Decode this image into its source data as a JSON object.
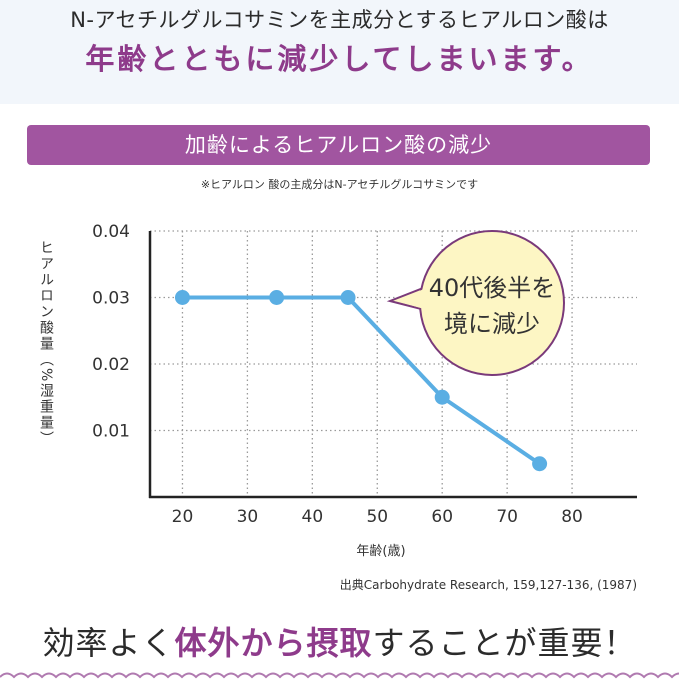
{
  "header": {
    "line1": "N-アセチルグルコサミンを主成分とするヒアルロン酸は",
    "line2": "年齢とともに減少してしまいます。"
  },
  "banner": {
    "title": "加齢によるヒアルロン酸の減少"
  },
  "note": "※ヒアルロン 酸の主成分はN-アセチルグルコサミンです",
  "chart_data": {
    "type": "line",
    "title": "加齢によるヒアルロン酸の減少",
    "xlabel": "年齢(歳)",
    "ylabel": "ヒアルロン酸量（%湿重量）",
    "xlim": [
      15,
      90
    ],
    "ylim": [
      0,
      0.04
    ],
    "x_ticks": [
      "20",
      "30",
      "40",
      "50",
      "60",
      "70",
      "80"
    ],
    "y_ticks": [
      "0.04",
      "0.03",
      "0.02",
      "0.01"
    ],
    "grid": true,
    "series": [
      {
        "x": [
          20,
          34.5,
          45.5,
          60,
          75
        ],
        "y": [
          0.03,
          0.03,
          0.03,
          0.015,
          0.005
        ]
      }
    ],
    "line_color": "#5aaee3",
    "callout": {
      "line1": "40代後半を",
      "line2": "境に減少"
    }
  },
  "source": "出典Carbohydrate Research, 159,127-136, (1987)",
  "bottom": {
    "part1": "効率よく",
    "highlight": "体外から摂取",
    "part2": "することが重要！"
  },
  "colors": {
    "accent": "#8e3b8b",
    "banner": "#a155a0",
    "bubble_fill": "#fdf6c4",
    "bubble_stroke": "#7a3a7a"
  }
}
